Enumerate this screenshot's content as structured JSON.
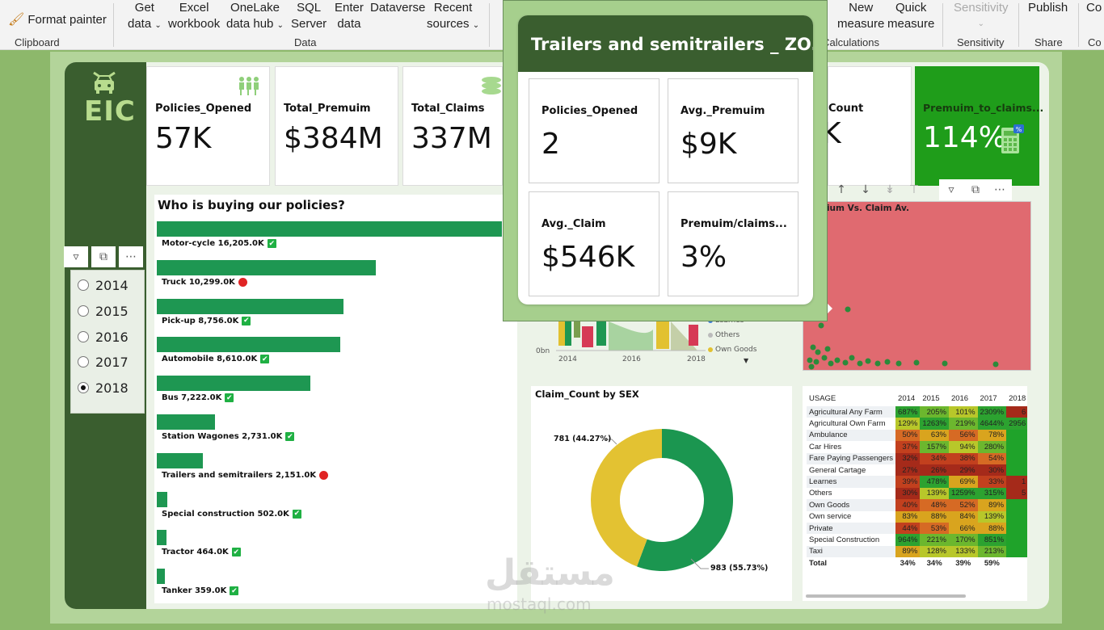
{
  "ribbon": {
    "clipboard": {
      "format_painter": "Format painter",
      "group": "Clipboard"
    },
    "data": {
      "get_data": [
        "Get",
        "data"
      ],
      "excel": [
        "Excel",
        "workbook"
      ],
      "onelake": [
        "OneLake",
        "data hub"
      ],
      "sql": [
        "SQL",
        "Server"
      ],
      "enter": [
        "Enter",
        "data"
      ],
      "dataverse": "Dataverse",
      "recent": [
        "Recent",
        "sources"
      ],
      "group": "Data"
    },
    "calculations": {
      "new_measure": [
        "New",
        "measure"
      ],
      "quick_measure": [
        "Quick",
        "measure"
      ],
      "group": "Calculations"
    },
    "sensitivity": {
      "label": "Sensitivity",
      "group": "Sensitivity"
    },
    "share": {
      "publish": "Publish",
      "group": "Share"
    },
    "copilot": {
      "label": "Co",
      "group": "Co"
    }
  },
  "logo": {
    "text": "EIC"
  },
  "slicer": {
    "years": [
      "2014",
      "2015",
      "2016",
      "2017",
      "2018"
    ],
    "selected": "2018"
  },
  "kpis": [
    {
      "label": "Policies_Opened",
      "value": "57K"
    },
    {
      "label": "Total_Premuim",
      "value": "$384M"
    },
    {
      "label": "Total_Claims",
      "value": "337M"
    }
  ],
  "kpi_count": {
    "label": "Count",
    "value": "K"
  },
  "kpi_ratio": {
    "label": "Premuim_to_claims...",
    "value": "114%"
  },
  "popup": {
    "title": "Trailers and semitrailers _ ZO...",
    "cards": [
      {
        "label": "Policies_Opened",
        "value": "2"
      },
      {
        "label": "Avg._Premuim",
        "value": "$9K"
      },
      {
        "label": "Avg._Claim",
        "value": "$546K"
      },
      {
        "label": "Premuim/claims...",
        "value": "3%"
      }
    ]
  },
  "bar_chart": {
    "title": "Who is buying our policies?"
  },
  "scatter": {
    "title": "mium Vs. Claim Av."
  },
  "area": {
    "y_tick": "0bn",
    "x_ticks": [
      "2014",
      "2016",
      "2018"
    ],
    "legend": [
      "Learnes",
      "Others",
      "Own Goods"
    ]
  },
  "donut": {
    "title": "Claim_Count by SEX",
    "label_a": "781 (44.27%)",
    "label_b": "983 (55.73%)"
  },
  "matrix": {
    "headers": [
      "USAGE",
      "2014",
      "2015",
      "2016",
      "2017",
      "2018"
    ],
    "rows": [
      {
        "label": "Agricultural Any Farm",
        "cells": [
          "687%",
          "205%",
          "101%",
          "2309%",
          "6"
        ]
      },
      {
        "label": "Agricultural Own Farm",
        "cells": [
          "129%",
          "1263%",
          "219%",
          "4644%",
          "2956"
        ]
      },
      {
        "label": "Ambulance",
        "cells": [
          "50%",
          "63%",
          "56%",
          "78%",
          ""
        ]
      },
      {
        "label": "Car Hires",
        "cells": [
          "37%",
          "157%",
          "94%",
          "280%",
          ""
        ]
      },
      {
        "label": "Fare Paying Passengers",
        "cells": [
          "32%",
          "34%",
          "38%",
          "54%",
          ""
        ]
      },
      {
        "label": "General Cartage",
        "cells": [
          "27%",
          "26%",
          "29%",
          "30%",
          ""
        ]
      },
      {
        "label": "Learnes",
        "cells": [
          "39%",
          "478%",
          "69%",
          "33%",
          "1"
        ]
      },
      {
        "label": "Others",
        "cells": [
          "30%",
          "139%",
          "1259%",
          "315%",
          "5"
        ]
      },
      {
        "label": "Own Goods",
        "cells": [
          "40%",
          "48%",
          "52%",
          "89%",
          ""
        ]
      },
      {
        "label": "Own service",
        "cells": [
          "83%",
          "88%",
          "84%",
          "139%",
          ""
        ]
      },
      {
        "label": "Private",
        "cells": [
          "44%",
          "53%",
          "66%",
          "88%",
          ""
        ]
      },
      {
        "label": "Special Construction",
        "cells": [
          "964%",
          "221%",
          "170%",
          "851%",
          ""
        ]
      },
      {
        "label": "Taxi",
        "cells": [
          "89%",
          "128%",
          "133%",
          "213%",
          ""
        ]
      }
    ],
    "total": {
      "label": "Total",
      "cells": [
        "34%",
        "34%",
        "39%",
        "59%",
        ""
      ]
    }
  },
  "watermark": {
    "text": "مستقل",
    "sub": "mostaql.com"
  },
  "chart_data": [
    {
      "type": "bar",
      "title": "Who is buying our policies?",
      "categories": [
        "Motor-cycle",
        "Truck",
        "Pick-up",
        "Automobile",
        "Bus",
        "Station Wagones",
        "Trailers and semitrailers",
        "Special construction",
        "Tractor",
        "Tanker"
      ],
      "values": [
        16205.0,
        10299.0,
        8756.0,
        8610.0,
        7222.0,
        2731.0,
        2151.0,
        502.0,
        464.0,
        359.0
      ],
      "value_labels": [
        "16,205.0K",
        "10,299.0K",
        "8,756.0K",
        "8,610.0K",
        "7,222.0K",
        "2,731.0K",
        "2,151.0K",
        "502.0K",
        "464.0K",
        "359.0K"
      ],
      "status": [
        "ok",
        "bad",
        "ok",
        "ok",
        "ok",
        "ok",
        "bad",
        "ok",
        "ok",
        "ok"
      ],
      "colors": {
        "bar": "#1e9752",
        "ok": "#1fb043",
        "bad": "#e02424"
      }
    },
    {
      "type": "pie",
      "title": "Claim_Count by SEX",
      "slices": [
        {
          "value": 781,
          "percent": 44.27,
          "color": "#e3c232"
        },
        {
          "value": 983,
          "percent": 55.73,
          "color": "#1b9650"
        }
      ]
    }
  ]
}
